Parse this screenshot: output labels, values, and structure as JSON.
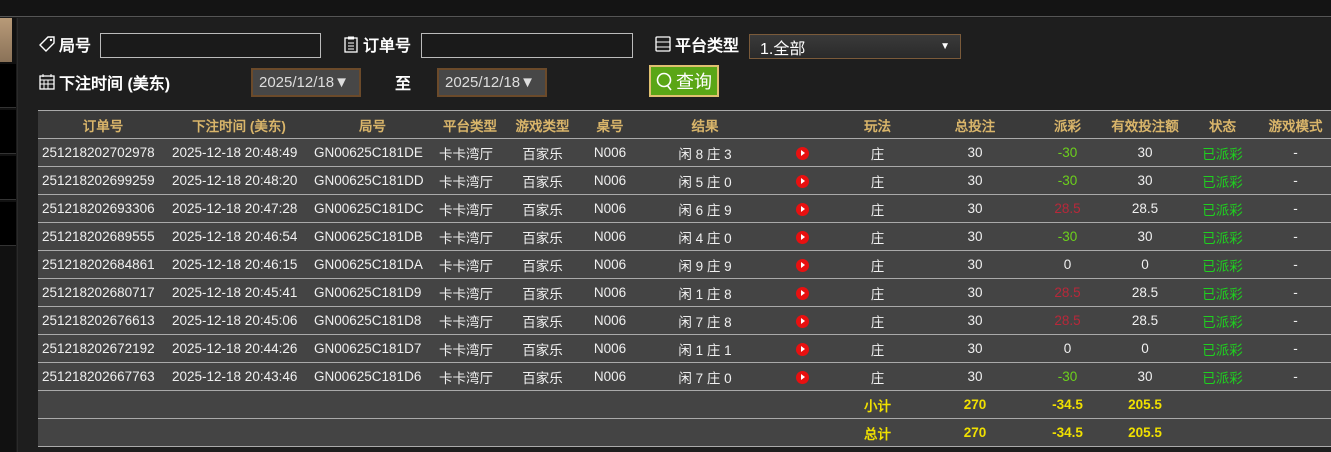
{
  "filters": {
    "round_label": "局号",
    "round_value": "",
    "order_label": "订单号",
    "order_value": "",
    "platform_label": "平台类型",
    "platform_value": "1.全部",
    "time_label": "下注时间 (美东)",
    "date_from": "2025/12/18▼",
    "to_label": "至",
    "date_to": "2025/12/18▼",
    "query_label": "查询"
  },
  "table": {
    "headers": [
      "订单号",
      "下注时间 (美东)",
      "局号",
      "平台类型",
      "游戏类型",
      "桌号",
      "结果",
      "",
      "玩法",
      "总投注",
      "派彩",
      "有效投注额",
      "状态",
      "游戏模式"
    ],
    "rows": [
      [
        "251218202702978",
        "2025-12-18 20:48:49",
        "GN00625C181DE",
        "卡卡湾厅",
        "百家乐",
        "N006",
        "闲 8 庄 3",
        "庄",
        "30",
        "-30",
        "30",
        "已派彩",
        "-"
      ],
      [
        "251218202699259",
        "2025-12-18 20:48:20",
        "GN00625C181DD",
        "卡卡湾厅",
        "百家乐",
        "N006",
        "闲 5 庄 0",
        "庄",
        "30",
        "-30",
        "30",
        "已派彩",
        "-"
      ],
      [
        "251218202693306",
        "2025-12-18 20:47:28",
        "GN00625C181DC",
        "卡卡湾厅",
        "百家乐",
        "N006",
        "闲 6 庄 9",
        "庄",
        "30",
        "28.5",
        "28.5",
        "已派彩",
        "-"
      ],
      [
        "251218202689555",
        "2025-12-18 20:46:54",
        "GN00625C181DB",
        "卡卡湾厅",
        "百家乐",
        "N006",
        "闲 4 庄 0",
        "庄",
        "30",
        "-30",
        "30",
        "已派彩",
        "-"
      ],
      [
        "251218202684861",
        "2025-12-18 20:46:15",
        "GN00625C181DA",
        "卡卡湾厅",
        "百家乐",
        "N006",
        "闲 9 庄 9",
        "庄",
        "30",
        "0",
        "0",
        "已派彩",
        "-"
      ],
      [
        "251218202680717",
        "2025-12-18 20:45:41",
        "GN00625C181D9",
        "卡卡湾厅",
        "百家乐",
        "N006",
        "闲 1 庄 8",
        "庄",
        "30",
        "28.5",
        "28.5",
        "已派彩",
        "-"
      ],
      [
        "251218202676613",
        "2025-12-18 20:45:06",
        "GN00625C181D8",
        "卡卡湾厅",
        "百家乐",
        "N006",
        "闲 7 庄 8",
        "庄",
        "30",
        "28.5",
        "28.5",
        "已派彩",
        "-"
      ],
      [
        "251218202672192",
        "2025-12-18 20:44:26",
        "GN00625C181D7",
        "卡卡湾厅",
        "百家乐",
        "N006",
        "闲 1 庄 1",
        "庄",
        "30",
        "0",
        "0",
        "已派彩",
        "-"
      ],
      [
        "251218202667763",
        "2025-12-18 20:43:46",
        "GN00625C181D6",
        "卡卡湾厅",
        "百家乐",
        "N006",
        "闲 7 庄 0",
        "庄",
        "30",
        "-30",
        "30",
        "已派彩",
        "-"
      ]
    ],
    "subtotal": {
      "label": "小计",
      "total": "270",
      "payout": "-34.5",
      "valid": "205.5"
    },
    "grandtotal": {
      "label": "总计",
      "total": "270",
      "payout": "-34.5",
      "valid": "205.5"
    }
  },
  "colors": {
    "header_text": "#d9b56a",
    "win": "#6cd01c",
    "loss": "#b8283a",
    "status": "#1fd01f",
    "query_button": "#5aa616",
    "totals": "#f0e000"
  }
}
